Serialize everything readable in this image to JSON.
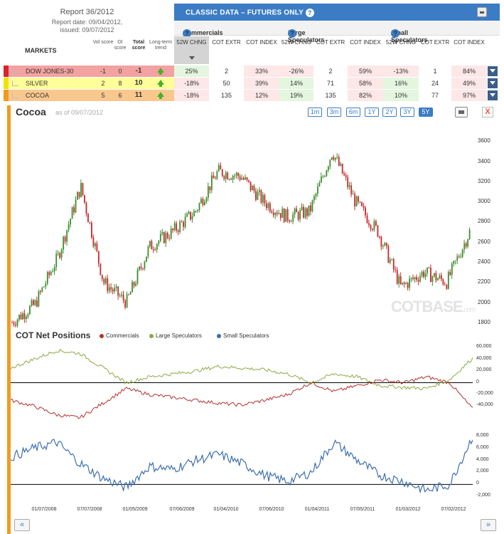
{
  "report": {
    "title": "Report 36/2012",
    "date_line": "Report date: 09/04/2012,",
    "issued_line": "issued: 09/07/2012"
  },
  "header": {
    "title": "CLASSIC DATA – FUTURES ONLY",
    "help": "?"
  },
  "groups": {
    "commercials": "Commercials",
    "large": "Large Speculators",
    "small": "Small Speculators"
  },
  "columns": {
    "markets": "MARKETS",
    "vol": "Vol score",
    "oi": "OI score",
    "total": "Total score",
    "trend": "Long-term trend",
    "chng": "52W CHNG",
    "extr": "COT EXTR",
    "index": "COT INDEX"
  },
  "rows": [
    {
      "name": "DOW JONES-30",
      "vol": "-1",
      "oi": "0",
      "total": "-1",
      "color": "#f3a2a2",
      "bar": "#d9232e",
      "c_chng": "25%",
      "c_extr": "2",
      "c_index": "33%",
      "l_chng": "-26%",
      "l_extr": "2",
      "l_index": "59%",
      "s_chng": "-13%",
      "s_extr": "1",
      "s_index": "84%"
    },
    {
      "name": "SILVER",
      "vol": "2",
      "oi": "8",
      "total": "10",
      "color": "#ffff99",
      "bar": "#f2e200",
      "c_chng": "-18%",
      "c_extr": "50",
      "c_index": "39%",
      "l_chng": "14%",
      "l_extr": "71",
      "l_index": "58%",
      "s_chng": "16%",
      "s_extr": "24",
      "s_index": "49%"
    },
    {
      "name": "COCOA",
      "vol": "5",
      "oi": "6",
      "total": "11",
      "color": "#f9c88f",
      "bar": "#f39a1e",
      "c_chng": "-18%",
      "c_extr": "135",
      "c_index": "12%",
      "l_chng": "19%",
      "l_extr": "135",
      "l_index": "82%",
      "s_chng": "10%",
      "s_extr": "77",
      "s_index": "97%"
    }
  ],
  "chart": {
    "title": "Cocoa",
    "asof": "as of 09/07/2012",
    "ranges": [
      "1m",
      "3m",
      "6m",
      "1Y",
      "2Y",
      "3Y",
      "5Y"
    ],
    "active_range": "5Y",
    "close_label": "X",
    "watermark": "COTBASE",
    "watermark_suffix": ".com"
  },
  "cot": {
    "title": "COT Net Positions",
    "legend": [
      "Commercials",
      "Large Speculators",
      "Small Speculators"
    ]
  },
  "colors": {
    "commercials": "#b52f2f",
    "large": "#8aaa45",
    "small": "#3c6fb0",
    "up": "#3a8f2b",
    "down": "#c8282c",
    "accent": "#3b7cc4"
  },
  "nav": {
    "prev": "«",
    "next": "»"
  },
  "chart_data": [
    {
      "type": "candlestick",
      "title": "Cocoa",
      "ylim": [
        1750,
        3800
      ],
      "yticks": [
        "3600",
        "3400",
        "3200",
        "3000",
        "2800",
        "2600",
        "2400",
        "2200",
        "2000",
        "1800"
      ],
      "x": [
        "2007-09",
        "2007-12",
        "2008-03",
        "2008-06",
        "2008-09",
        "2008-12",
        "2009-03",
        "2009-06",
        "2009-09",
        "2009-12",
        "2010-03",
        "2010-06",
        "2010-09",
        "2010-12",
        "2011-03",
        "2011-06",
        "2011-09",
        "2011-12",
        "2012-03",
        "2012-06",
        "2012-09"
      ],
      "close": [
        1800,
        1980,
        2450,
        3150,
        2200,
        2000,
        2550,
        2700,
        2900,
        3300,
        3250,
        3000,
        2850,
        2900,
        3500,
        3000,
        2700,
        2150,
        2300,
        2200,
        2700
      ]
    },
    {
      "type": "line",
      "title": "COT Net Positions",
      "series_names": [
        "Commercials",
        "Large Speculators"
      ],
      "ylim": [
        -70000,
        70000
      ],
      "yticks": [
        "60,000",
        "40,000",
        "20,000",
        "0",
        "-20,000",
        "-40,000"
      ],
      "x": [
        "2007-09",
        "2007-12",
        "2008-03",
        "2008-06",
        "2008-09",
        "2008-12",
        "2009-03",
        "2009-06",
        "2009-09",
        "2009-12",
        "2010-03",
        "2010-06",
        "2010-09",
        "2010-12",
        "2011-03",
        "2011-06",
        "2011-09",
        "2011-12",
        "2012-03",
        "2012-06",
        "2012-09"
      ],
      "commercials": [
        -30000,
        -40000,
        -55000,
        -60000,
        -35000,
        -10000,
        -20000,
        -25000,
        -30000,
        -35000,
        -38000,
        -30000,
        -20000,
        0,
        -15000,
        -5000,
        5000,
        0,
        10000,
        0,
        -45000
      ],
      "large": [
        25000,
        40000,
        55000,
        50000,
        25000,
        0,
        10000,
        15000,
        20000,
        28000,
        25000,
        22000,
        15000,
        0,
        15000,
        10000,
        -5000,
        -8000,
        -10000,
        5000,
        42000
      ]
    },
    {
      "type": "line",
      "title": "Small Speculators",
      "ylim": [
        -3500,
        9500
      ],
      "yticks": [
        "8,000",
        "6,000",
        "4,000",
        "2,000",
        "0",
        "-2,000"
      ],
      "x": [
        "2007-09",
        "2007-12",
        "2008-03",
        "2008-06",
        "2008-09",
        "2008-12",
        "2009-03",
        "2009-06",
        "2009-09",
        "2009-12",
        "2010-03",
        "2010-06",
        "2010-09",
        "2010-12",
        "2011-03",
        "2011-06",
        "2011-09",
        "2011-12",
        "2012-03",
        "2012-06",
        "2012-09"
      ],
      "small": [
        4500,
        6000,
        7000,
        3500,
        1000,
        -500,
        3000,
        2500,
        4000,
        5000,
        3500,
        1500,
        500,
        2000,
        7000,
        4000,
        1500,
        500,
        -1000,
        0,
        8000
      ]
    }
  ],
  "x_labels": [
    "01/07/2008",
    "07/07/2008",
    "01/05/2009",
    "07/06/2009",
    "01/04/2010",
    "07/06/2010",
    "01/04/2011",
    "07/05/2011",
    "01/03/2012",
    "07/02/2012"
  ]
}
